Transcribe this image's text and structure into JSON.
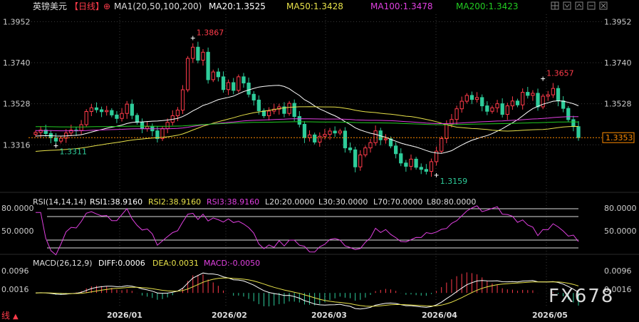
{
  "header": {
    "title": "英镑美元",
    "period": "【日线】",
    "ma_params": "MA1(20,50,100,200)",
    "ma20": "MA20:1.3525",
    "ma50": "MA50:1.3428",
    "ma100": "MA100:1.3478",
    "ma200": "MA200:1.3423"
  },
  "toolbar": {
    "icons": [
      "target-icon",
      "grid-icon",
      "down-arrow-icon",
      "up-arrow-icon",
      "minus-icon",
      "close-icon"
    ]
  },
  "rsi_header": {
    "params": "RSI(14,14,14)",
    "rsi1": "RSI1:38.9160",
    "rsi2": "RSI2:38.9160",
    "rsi3": "RSI3:38.9160",
    "l20": "L20:20.0000",
    "l30": "L30:30.0000",
    "l70": "L70:70.0000",
    "l80": "L80:80.0000"
  },
  "macd_header": {
    "params": "MACD(26,12,9)",
    "diff": "DIFF:0.0006",
    "dea": "DEA:0.0031",
    "macd": "MACD:-0.0050"
  },
  "footer": {
    "mode_label": "线",
    "watermark": "FX678"
  },
  "colors": {
    "up": "#ff3b4a",
    "down": "#2ecc9a",
    "ma20": "#ffffff",
    "ma50": "#e8e24a",
    "ma100": "#e040e0",
    "ma200": "#22cc22",
    "grid": "#3a3a3a",
    "price_line": "#ff8c00"
  },
  "chart_data": {
    "type": "candlestick",
    "price_axis": {
      "ticks": [
        "1.3952",
        "1.3740",
        "1.3528",
        "1.3316"
      ],
      "range": [
        1.31,
        1.399
      ]
    },
    "current_price": "1.3353",
    "annotations": [
      {
        "label": "1.3867",
        "value": 1.3867,
        "type": "high"
      },
      {
        "label": "1.3311",
        "value": 1.3311,
        "type": "low"
      },
      {
        "label": "1.3159",
        "value": 1.3159,
        "type": "low"
      },
      {
        "label": "1.3657",
        "value": 1.3657,
        "type": "high"
      }
    ],
    "x_ticks": [
      "2026/01",
      "2026/02",
      "2026/03",
      "2026/04",
      "2026/05"
    ],
    "closes": [
      1.338,
      1.3392,
      1.3374,
      1.3352,
      1.3335,
      1.335,
      1.3377,
      1.3392,
      1.339,
      1.342,
      1.3488,
      1.3507,
      1.3497,
      1.3487,
      1.3493,
      1.347,
      1.3452,
      1.3478,
      1.3526,
      1.3468,
      1.3432,
      1.34,
      1.341,
      1.3388,
      1.3348,
      1.34,
      1.3432,
      1.3466,
      1.3495,
      1.36,
      1.3762,
      1.382,
      1.3753,
      1.3794,
      1.3652,
      1.3692,
      1.3667,
      1.3601,
      1.3637,
      1.3597,
      1.3667,
      1.3635,
      1.3577,
      1.3547,
      1.3492,
      1.3466,
      1.349,
      1.35,
      1.3512,
      1.3478,
      1.353,
      1.3462,
      1.3422,
      1.3353,
      1.3367,
      1.333,
      1.336,
      1.337,
      1.3387,
      1.3377,
      1.3387,
      1.33,
      1.329,
      1.3202,
      1.3264,
      1.33,
      1.3327,
      1.3388,
      1.3342,
      1.3347,
      1.331,
      1.327,
      1.3222,
      1.3205,
      1.3242,
      1.32,
      1.3189,
      1.3179,
      1.3229,
      1.3283,
      1.3348,
      1.3422,
      1.3447,
      1.3502,
      1.3541,
      1.3571,
      1.355,
      1.356,
      1.3517,
      1.3489,
      1.3507,
      1.3528,
      1.3473,
      1.3517,
      1.3542,
      1.3522,
      1.3587,
      1.3571,
      1.3582,
      1.3512,
      1.3567,
      1.3574,
      1.3607,
      1.3543,
      1.3504,
      1.3446,
      1.341,
      1.3353
    ],
    "series": [
      {
        "name": "RSI",
        "ticks": [
          "80.0000",
          "50.0000"
        ]
      },
      {
        "name": "MACD",
        "ticks": [
          "0.0096",
          "0.0016"
        ]
      }
    ]
  }
}
